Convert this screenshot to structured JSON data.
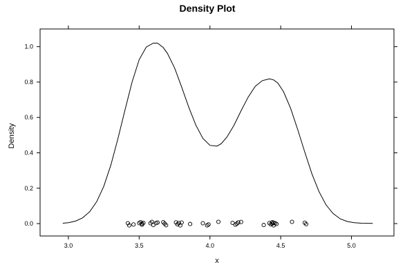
{
  "chart_data": {
    "type": "line",
    "title": "Density Plot",
    "xlabel": "x",
    "ylabel": "Density",
    "xlim": [
      2.8,
      5.3
    ],
    "ylim": [
      -0.07,
      1.1
    ],
    "x_ticks": [
      {
        "value": 3.0,
        "label": "3.0"
      },
      {
        "value": 3.5,
        "label": "3.5"
      },
      {
        "value": 4.0,
        "label": "4.0"
      },
      {
        "value": 4.5,
        "label": "4.5"
      },
      {
        "value": 5.0,
        "label": "5.0"
      }
    ],
    "y_ticks": [
      {
        "value": 0.0,
        "label": "0.0"
      },
      {
        "value": 0.2,
        "label": "0.2"
      },
      {
        "value": 0.4,
        "label": "0.4"
      },
      {
        "value": 0.6,
        "label": "0.6"
      },
      {
        "value": 0.8,
        "label": "0.8"
      },
      {
        "value": 1.0,
        "label": "1.0"
      }
    ],
    "grid": false,
    "legend": "none",
    "series": [
      {
        "style": "line",
        "x": [
          2.96,
          3.0,
          3.05,
          3.1,
          3.15,
          3.2,
          3.25,
          3.3,
          3.35,
          3.4,
          3.45,
          3.5,
          3.55,
          3.6,
          3.63,
          3.67,
          3.7,
          3.75,
          3.8,
          3.85,
          3.9,
          3.95,
          4.0,
          4.05,
          4.08,
          4.12,
          4.17,
          4.22,
          4.27,
          4.32,
          4.37,
          4.42,
          4.45,
          4.48,
          4.52,
          4.57,
          4.62,
          4.67,
          4.72,
          4.77,
          4.82,
          4.87,
          4.92,
          4.97,
          5.02,
          5.07,
          5.15
        ],
        "y": [
          0.002,
          0.005,
          0.014,
          0.032,
          0.067,
          0.124,
          0.211,
          0.331,
          0.48,
          0.643,
          0.8,
          0.927,
          0.998,
          1.02,
          1.02,
          0.995,
          0.962,
          0.88,
          0.772,
          0.659,
          0.557,
          0.482,
          0.442,
          0.438,
          0.452,
          0.489,
          0.556,
          0.638,
          0.715,
          0.776,
          0.808,
          0.818,
          0.812,
          0.794,
          0.745,
          0.651,
          0.532,
          0.404,
          0.282,
          0.181,
          0.106,
          0.057,
          0.027,
          0.012,
          0.005,
          0.002,
          0.001
        ]
      },
      {
        "style": "rug-points",
        "x": [
          3.42,
          3.43,
          3.46,
          3.5,
          3.51,
          3.52,
          3.52,
          3.53,
          3.58,
          3.59,
          3.6,
          3.62,
          3.63,
          3.67,
          3.68,
          3.69,
          3.76,
          3.77,
          3.78,
          3.79,
          3.8,
          3.86,
          3.95,
          3.98,
          3.99,
          4.06,
          4.16,
          4.18,
          4.19,
          4.2,
          4.22,
          4.38,
          4.42,
          4.43,
          4.44,
          4.44,
          4.45,
          4.45,
          4.46,
          4.47,
          4.58,
          4.67,
          4.68
        ],
        "y": [
          0.002,
          -0.01,
          -0.005,
          0.003,
          0.008,
          -0.006,
          0.0,
          0.004,
          0.002,
          0.01,
          -0.008,
          0.003,
          0.006,
          0.008,
          0.0,
          -0.009,
          0.007,
          -0.004,
          0.003,
          -0.01,
          0.006,
          -0.002,
          0.002,
          -0.01,
          -0.005,
          0.01,
          0.004,
          -0.006,
          0.0,
          0.007,
          0.009,
          -0.008,
          0.003,
          -0.004,
          0.0,
          0.008,
          -0.01,
          0.005,
          0.002,
          -0.002,
          0.01,
          0.005,
          -0.003
        ]
      }
    ]
  }
}
